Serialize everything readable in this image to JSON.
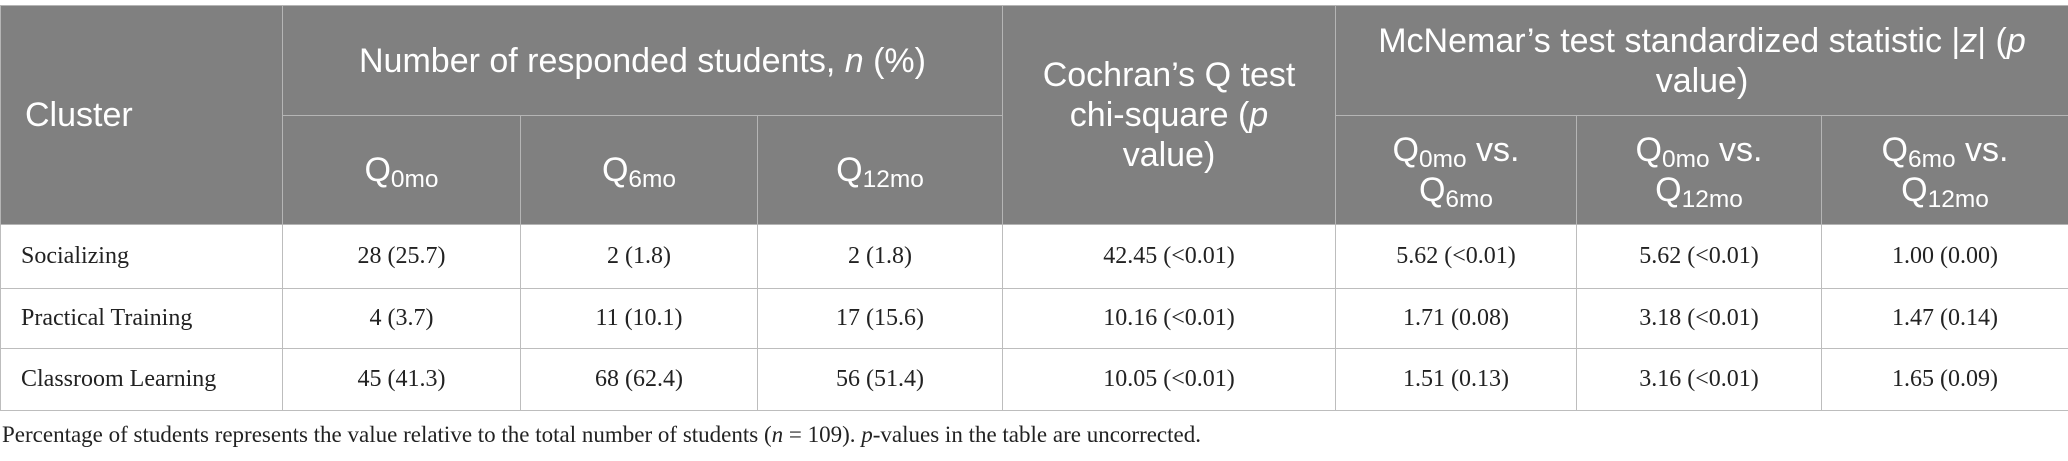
{
  "table": {
    "header": {
      "cluster": "Cluster",
      "group1": [
        {
          "text": "Number of responded students, "
        },
        {
          "text": "n",
          "style": "italic"
        },
        {
          "text": " (%)"
        }
      ],
      "cochran": [
        {
          "text": "Cochran’s Q test chi-square ("
        },
        {
          "text": "p",
          "style": "italic"
        },
        {
          "text": " value)"
        }
      ],
      "group2": [
        {
          "text": "McNemar’s test standardized statistic |"
        },
        {
          "text": "z",
          "style": "italic"
        },
        {
          "text": "| ("
        },
        {
          "text": "p",
          "style": "italic"
        },
        {
          "text": " value)"
        }
      ],
      "sub1": [
        [
          {
            "text": "Q"
          },
          {
            "text": "0mo",
            "style": "sub"
          }
        ],
        [
          {
            "text": "Q"
          },
          {
            "text": "6mo",
            "style": "sub"
          }
        ],
        [
          {
            "text": "Q"
          },
          {
            "text": "12mo",
            "style": "sub"
          }
        ]
      ],
      "sub2": [
        [
          {
            "text": "Q"
          },
          {
            "text": "0mo",
            "style": "sub"
          },
          {
            "text": " vs. Q"
          },
          {
            "text": "6mo",
            "style": "sub"
          }
        ],
        [
          {
            "text": "Q"
          },
          {
            "text": "0mo",
            "style": "sub"
          },
          {
            "text": " vs. Q"
          },
          {
            "text": "12mo",
            "style": "sub"
          }
        ],
        [
          {
            "text": "Q"
          },
          {
            "text": "6mo",
            "style": "sub"
          },
          {
            "text": " vs. Q"
          },
          {
            "text": "12mo",
            "style": "sub"
          }
        ]
      ]
    },
    "rows": [
      [
        "Socializing",
        "28 (25.7)",
        "2 (1.8)",
        "2 (1.8)",
        "42.45 (<0.01)",
        "5.62 (<0.01)",
        "5.62 (<0.01)",
        "1.00 (0.00)"
      ],
      [
        "Practical Training",
        "4 (3.7)",
        "11 (10.1)",
        "17 (15.6)",
        "10.16 (<0.01)",
        "1.71 (0.08)",
        "3.18 (<0.01)",
        "1.47 (0.14)"
      ],
      [
        "Classroom Learning",
        "45 (41.3)",
        "68 (62.4)",
        "56 (51.4)",
        "10.05 (<0.01)",
        "1.51 (0.13)",
        "3.16 (<0.01)",
        "1.65 (0.09)"
      ]
    ]
  },
  "footnote": [
    {
      "text": "Percentage of students represents the value relative to the total number of students ("
    },
    {
      "text": "n",
      "style": "italic"
    },
    {
      "text": " = 109). "
    },
    {
      "text": "p",
      "style": "italic"
    },
    {
      "text": "-values in the table are uncorrected."
    }
  ]
}
